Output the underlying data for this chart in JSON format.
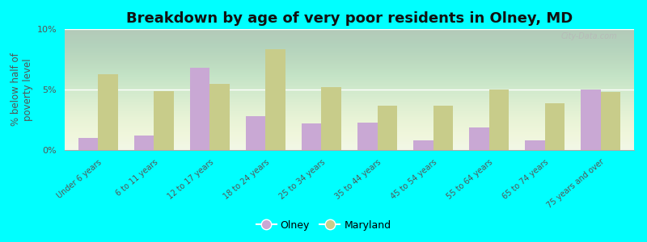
{
  "title": "Breakdown by age of very poor residents in Olney, MD",
  "ylabel": "% below half of\npoverty level",
  "categories": [
    "Under 6 years",
    "6 to 11 years",
    "12 to 17 years",
    "18 to 24 years",
    "25 to 34 years",
    "35 to 44 years",
    "45 to 54 years",
    "55 to 64 years",
    "65 to 74 years",
    "75 years and over"
  ],
  "olney_values": [
    1.0,
    1.2,
    6.8,
    2.8,
    2.2,
    2.3,
    0.8,
    1.9,
    0.8,
    5.0
  ],
  "maryland_values": [
    6.3,
    4.9,
    5.5,
    8.3,
    5.2,
    3.7,
    3.7,
    5.0,
    3.9,
    4.8
  ],
  "olney_color": "#c9a8d4",
  "maryland_color": "#c8cc8a",
  "background_color": "#00ffff",
  "ylim": [
    0,
    10
  ],
  "yticks": [
    0,
    5,
    10
  ],
  "ytick_labels": [
    "0%",
    "5%",
    "10%"
  ],
  "title_fontsize": 13,
  "axis_label_fontsize": 8.5,
  "tick_fontsize": 8,
  "xtick_fontsize": 7,
  "legend_olney": "Olney",
  "legend_maryland": "Maryland",
  "watermark": "City-Data.com"
}
